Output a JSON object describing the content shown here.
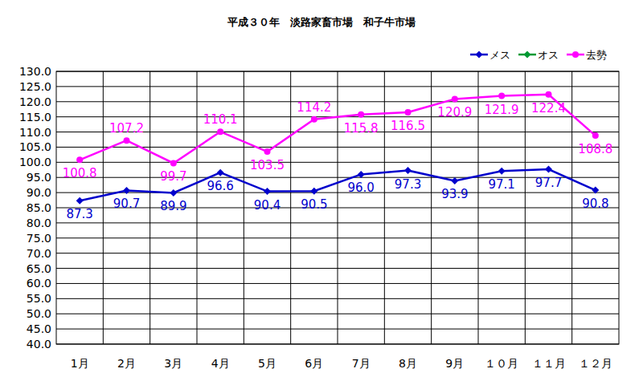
{
  "chart_data": {
    "type": "line",
    "title": "平成３０年　淡路家畜市場　和子牛市場",
    "categories": [
      "1月",
      "2月",
      "3月",
      "4月",
      "5月",
      "6月",
      "7月",
      "8月",
      "9月",
      "１０月",
      "１１月",
      "１２月"
    ],
    "series": [
      {
        "name": "メス",
        "color": "#0000cc",
        "marker": "diamond",
        "values": [
          87.3,
          90.7,
          89.9,
          96.6,
          90.4,
          90.5,
          96.0,
          97.3,
          93.9,
          97.1,
          97.7,
          90.8
        ],
        "value_labels": [
          "87.3",
          "90.7",
          "89.9",
          "96.6",
          "90.4",
          "90.5",
          "96.0",
          "97.3",
          "93.9",
          "97.1",
          "97.7",
          "90.8"
        ]
      },
      {
        "name": "オス",
        "color": "#009933",
        "marker": "diamond",
        "values": [
          null,
          null,
          null,
          null,
          null,
          null,
          null,
          null,
          null,
          null,
          null,
          null
        ]
      },
      {
        "name": "去勢",
        "color": "#ff00ff",
        "marker": "circle",
        "values": [
          100.8,
          107.2,
          99.7,
          110.1,
          103.5,
          114.2,
          115.8,
          116.5,
          120.9,
          121.9,
          122.4,
          108.8
        ],
        "value_labels": [
          "100.8",
          "107.2",
          "99.7",
          "110.1",
          "103.5",
          "114.2",
          "115.8",
          "116.5",
          "120.9",
          "121.9",
          "122.4",
          "108.8"
        ]
      }
    ],
    "ylim": [
      40,
      130
    ],
    "yticks": [
      {
        "value": 40,
        "label": "40.0"
      },
      {
        "value": 45,
        "label": "45.0"
      },
      {
        "value": 50,
        "label": "50.0"
      },
      {
        "value": 55,
        "label": "55.0"
      },
      {
        "value": 60,
        "label": "60.0"
      },
      {
        "value": 65,
        "label": "65.0"
      },
      {
        "value": 70,
        "label": "70.0"
      },
      {
        "value": 75,
        "label": "75.0"
      },
      {
        "value": 80,
        "label": "80.0"
      },
      {
        "value": 85,
        "label": "85.0"
      },
      {
        "value": 90,
        "label": "90.0"
      },
      {
        "value": 95,
        "label": "95.0"
      },
      {
        "value": 100,
        "label": "100.0"
      },
      {
        "value": 105,
        "label": "105.0"
      },
      {
        "value": 110,
        "label": "110.0"
      },
      {
        "value": 115,
        "label": "115.0"
      },
      {
        "value": 120,
        "label": "120.0"
      },
      {
        "value": 125,
        "label": "125.0"
      },
      {
        "value": 130,
        "label": "130.0"
      }
    ],
    "grid": true,
    "legend": "top-right",
    "data_labels": true
  }
}
